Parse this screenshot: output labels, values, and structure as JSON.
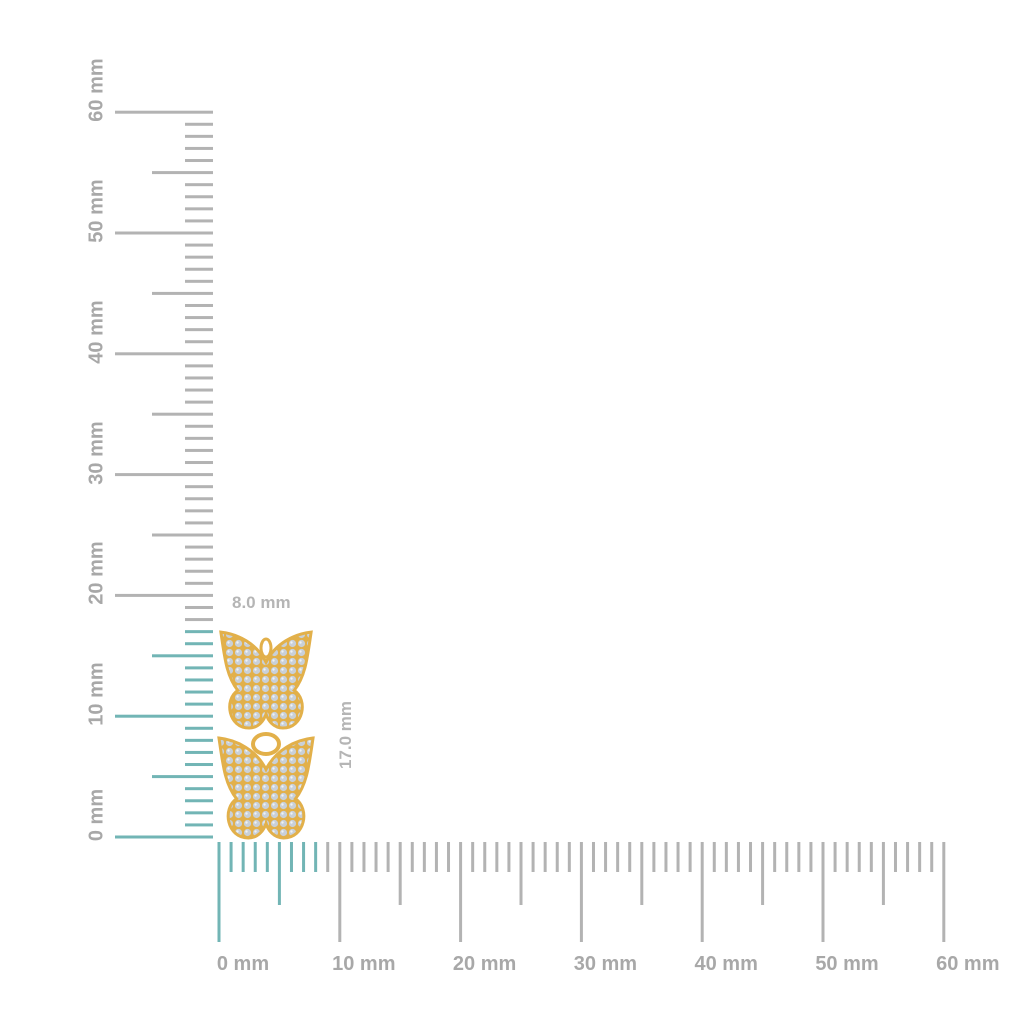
{
  "ruler": {
    "unit": "mm",
    "max_mm": 60,
    "labels": [
      "0 mm",
      "10 mm",
      "20 mm",
      "30 mm",
      "40 mm",
      "50 mm",
      "60 mm"
    ],
    "tick_color": "#b3b3b3",
    "highlight_color": "#72b5b5"
  },
  "product": {
    "width_mm": 8.0,
    "height_mm": 17.0,
    "width_label": "8.0 mm",
    "height_label": "17.0 mm",
    "metal_color": "#e2b04a",
    "stone_color": "#c9d0d8",
    "description_icon": "double-butterfly-drop-earring"
  }
}
